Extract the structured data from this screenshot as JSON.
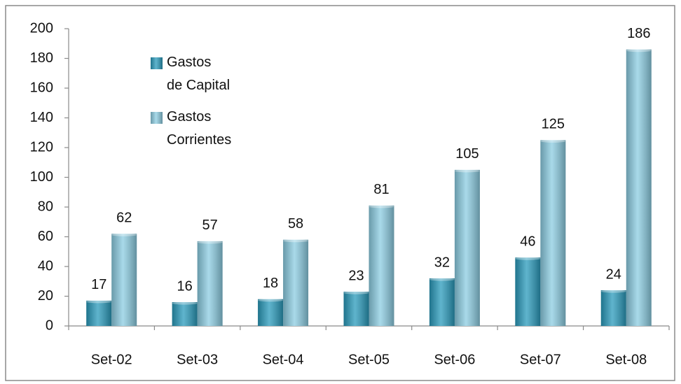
{
  "chart_data": {
    "type": "bar",
    "categories": [
      "Set-02",
      "Set-03",
      "Set-04",
      "Set-05",
      "Set-06",
      "Set-07",
      "Set-08"
    ],
    "series": [
      {
        "name": "Gastos de Capital",
        "color": "#2a9bbc",
        "values": [
          17,
          16,
          18,
          23,
          32,
          46,
          24
        ]
      },
      {
        "name": "Gastos Corrientes",
        "color": "#8ccde2",
        "values": [
          62,
          57,
          58,
          81,
          105,
          125,
          186
        ]
      }
    ],
    "ylim": [
      0,
      200
    ],
    "yticks": [
      0,
      20,
      40,
      60,
      80,
      100,
      120,
      140,
      160,
      180,
      200
    ],
    "grid": false,
    "legend": "upper left"
  }
}
